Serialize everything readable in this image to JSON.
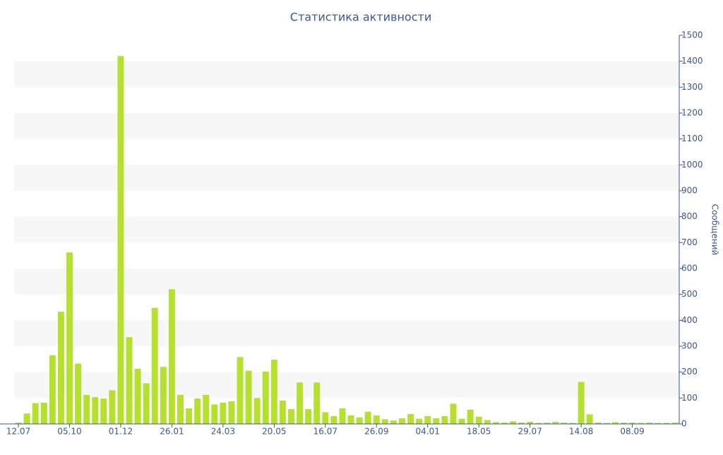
{
  "chart_data": {
    "type": "bar",
    "title": "Статистика активности",
    "y_axis_label": "Сообщений",
    "categories": [
      "12.07",
      null,
      null,
      null,
      null,
      null,
      "05.10",
      null,
      null,
      null,
      null,
      null,
      "01.12",
      null,
      null,
      null,
      null,
      null,
      "26.01",
      null,
      null,
      null,
      null,
      null,
      "24.03",
      null,
      null,
      null,
      null,
      null,
      "20.05",
      null,
      null,
      null,
      null,
      null,
      "16.07",
      null,
      null,
      null,
      null,
      null,
      "26.09",
      null,
      null,
      null,
      null,
      null,
      "04.01",
      null,
      null,
      null,
      null,
      null,
      "18.05",
      null,
      null,
      null,
      null,
      null,
      "29.07",
      null,
      null,
      null,
      null,
      null,
      "14.08",
      null,
      null,
      null,
      null,
      null,
      "08.09",
      null,
      null,
      null,
      null,
      null
    ],
    "values": [
      5,
      40,
      80,
      82,
      265,
      433,
      662,
      233,
      112,
      103,
      98,
      130,
      1420,
      335,
      213,
      157,
      448,
      220,
      520,
      112,
      60,
      98,
      112,
      75,
      82,
      87,
      258,
      205,
      100,
      202,
      248,
      90,
      57,
      160,
      57,
      160,
      45,
      30,
      60,
      33,
      25,
      47,
      33,
      18,
      13,
      22,
      38,
      20,
      30,
      22,
      30,
      78,
      20,
      55,
      28,
      15,
      7,
      5,
      10,
      5,
      8,
      4,
      5,
      8,
      5,
      4,
      162,
      37,
      5,
      4,
      7,
      5,
      5,
      4,
      5,
      4,
      4,
      5
    ],
    "color": "#b5e02e",
    "ylim": [
      0,
      1500
    ],
    "yticks": [
      0,
      100,
      200,
      300,
      400,
      500,
      600,
      700,
      800,
      900,
      1000,
      1100,
      1200,
      1300,
      1400,
      1500
    ],
    "grid": "bands",
    "y_axis_side": "right"
  }
}
